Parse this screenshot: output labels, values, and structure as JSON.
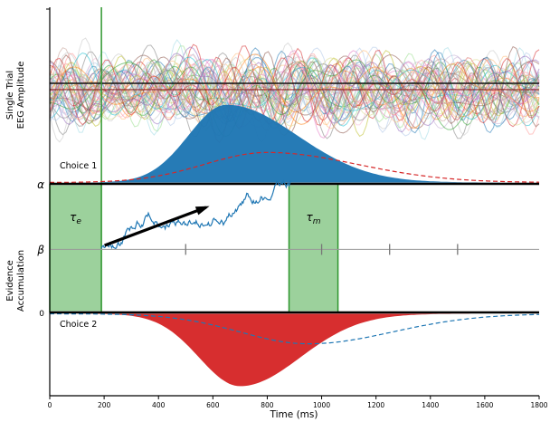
{
  "chart_data": {
    "type": "composite",
    "title": "",
    "xlabel": "Time (ms)",
    "xlim": [
      0,
      1800
    ],
    "x_ticks": [
      0,
      200,
      400,
      600,
      800,
      1000,
      1200,
      1400,
      1600,
      1800
    ],
    "panels": [
      {
        "name": "eeg",
        "ylabel_lines": [
          "Single Trial",
          "EEG Amplitude"
        ]
      },
      {
        "name": "accumulation",
        "ylabel_lines": [
          "Evidence",
          "Accumulation"
        ]
      }
    ],
    "eeg": {
      "n_trials": 55,
      "seed": 7,
      "palette": [
        "#1f77b4",
        "#aec7e8",
        "#ff7f0e",
        "#ffbb78",
        "#2ca02c",
        "#98df8a",
        "#d62728",
        "#ff9896",
        "#9467bd",
        "#c5b0d5",
        "#8c564b",
        "#c49c94",
        "#e377c2",
        "#f7b6d2",
        "#7f7f7f",
        "#c7c7c7",
        "#bcbd22",
        "#dbdb8d",
        "#17becf",
        "#9edae5"
      ],
      "mean_lines": [
        {
          "name": "grand-average-line",
          "color": "#111111"
        },
        {
          "name": "erp-mean-line",
          "color": "#8b1a1a"
        }
      ]
    },
    "accumulation": {
      "alpha_label": "α",
      "beta_label": "β",
      "zero_label": "0",
      "beta_fraction": 0.49,
      "start_ms": 190,
      "threshold_cross_ms": 880,
      "seed": 11,
      "trace_color": "#1f77b4",
      "beta_tick_times": [
        500,
        1000,
        1250,
        1500
      ],
      "drift_arrow": {
        "from_ms": 195,
        "to_ms": 575,
        "color": "#000000"
      },
      "non_decision": {
        "label_base": "τ",
        "label_sub": "e",
        "from_ms": 0,
        "to_ms": 190
      },
      "motor_time": {
        "label_base": "τ",
        "label_sub": "m",
        "from_ms": 880,
        "to_ms": 1060
      },
      "region_fill": "#8bc98b",
      "region_edge": "#2e962e"
    },
    "distributions": [
      {
        "name": "choice1-rt-density",
        "panel": "top",
        "style": "fill",
        "color": "#1f77b4",
        "peak_ms": 650,
        "sd_left_ms": 140,
        "sd_right_ms": 260,
        "height_frac": 0.44
      },
      {
        "name": "choice1-model-density",
        "panel": "top",
        "style": "dashed",
        "color": "#d62728",
        "peak_ms": 800,
        "sd_left_ms": 230,
        "sd_right_ms": 330,
        "height_frac": 0.17
      },
      {
        "name": "choice2-rt-density",
        "panel": "bottom",
        "style": "fill",
        "color": "#d62728",
        "peak_ms": 700,
        "sd_left_ms": 150,
        "sd_right_ms": 220,
        "height_frac": 0.41
      },
      {
        "name": "choice2-model-density",
        "panel": "bottom",
        "style": "dashed",
        "color": "#1f77b4",
        "peak_ms": 950,
        "sd_left_ms": 250,
        "sd_right_ms": 310,
        "height_frac": 0.17
      }
    ],
    "choice1_label": "Choice 1",
    "choice2_label": "Choice 2"
  }
}
